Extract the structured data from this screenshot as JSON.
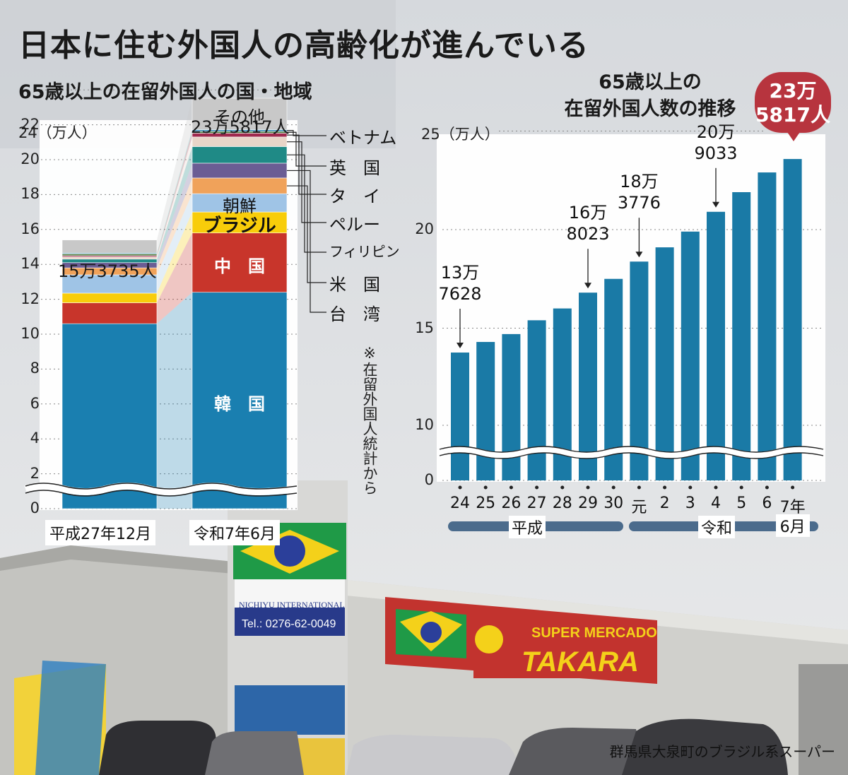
{
  "headline": "日本に住む外国人の高齢化が進んでいる",
  "caption": "群馬県大泉町のブラジル系スーパー",
  "source_note": "※在留外国人統計から",
  "colors": {
    "korea": "#1a7fb0",
    "china": "#c8352b",
    "brazil": "#f8cd0a",
    "chosen": "#9fc4e6",
    "usa": "#f0a25a",
    "taiwan": "#6b5d94",
    "philippines": "#1f8a86",
    "peru": "#e8d5c8",
    "thailand": "#a02a4e",
    "uk": "#4c7a3e",
    "vietnam": "#3d8fb7",
    "other": "#c8c8c8",
    "trend_bar": "#1a7aa6",
    "highlight": "#b7343e"
  },
  "chart_data": [
    {
      "type": "bar",
      "stacked": true,
      "title": "65歳以上の在留外国人の国・地域",
      "y_unit_label": "24（万人）",
      "ylim": [
        0,
        24
      ],
      "y_ticks": [
        "0",
        "2",
        "4",
        "6",
        "8",
        "10",
        "12",
        "14",
        "16",
        "18",
        "20",
        "22"
      ],
      "axis_break": true,
      "categories": [
        "平成27年12月",
        "令和7年6月"
      ],
      "totals": [
        "15万3735人",
        "23万5817人"
      ],
      "series": [
        {
          "name": "韓　国",
          "key": "korea",
          "label_shown": true,
          "values": [
            10.6,
            12.4
          ]
        },
        {
          "name": "中　国",
          "key": "china",
          "label_shown": true,
          "values": [
            1.2,
            3.4
          ]
        },
        {
          "name": "ブラジル",
          "key": "brazil",
          "label_shown": true,
          "values": [
            0.55,
            1.2
          ]
        },
        {
          "name": "朝鮮",
          "key": "chosen",
          "label_shown": true,
          "values": [
            1.05,
            1.05
          ]
        },
        {
          "name": "米　国",
          "key": "usa",
          "label_shown": true,
          "values": [
            0.4,
            0.9
          ]
        },
        {
          "name": "台　湾",
          "key": "taiwan",
          "label_shown": true,
          "values": [
            0.3,
            0.85
          ]
        },
        {
          "name": "フィリピン",
          "key": "philippines",
          "label_shown": true,
          "values": [
            0.2,
            0.95
          ]
        },
        {
          "name": "ペルー",
          "key": "peru",
          "label_shown": true,
          "values": [
            0.13,
            0.55
          ]
        },
        {
          "name": "タ　イ",
          "key": "thailand",
          "label_shown": true,
          "values": [
            0.07,
            0.22
          ]
        },
        {
          "name": "英　国",
          "key": "uk",
          "label_shown": true,
          "values": [
            0.1,
            0.1
          ]
        },
        {
          "name": "ベトナム",
          "key": "vietnam",
          "label_shown": true,
          "values": [
            0.05,
            0.1
          ]
        },
        {
          "name": "その他",
          "key": "other",
          "label_shown": true,
          "values": [
            0.75,
            1.8
          ]
        }
      ]
    },
    {
      "type": "bar",
      "title": "65歳以上の在留外国人数の推移",
      "y_unit_label": "25（万人）",
      "ylim": [
        0,
        25
      ],
      "y_ticks": [
        "0",
        "10",
        "15",
        "20"
      ],
      "axis_break": true,
      "categories": [
        "24",
        "25",
        "26",
        "27",
        "28",
        "29",
        "30",
        "元",
        "2",
        "3",
        "4",
        "5",
        "6",
        "7年"
      ],
      "last_category_sub": "6月",
      "values": [
        13.7628,
        14.3,
        14.7,
        15.4,
        16.0,
        16.8023,
        17.5,
        18.3776,
        19.1,
        19.9,
        20.9033,
        21.9,
        22.9,
        23.5817
      ],
      "annotations": [
        {
          "index": 0,
          "text": "13万\n7628"
        },
        {
          "index": 5,
          "text": "16万\n8023"
        },
        {
          "index": 7,
          "text": "18万\n3776"
        },
        {
          "index": 10,
          "text": "20万\n9033"
        },
        {
          "index": 13,
          "text": "23万\n5817人",
          "highlight": true
        }
      ],
      "eras": [
        {
          "label": "平成"
        },
        {
          "label": "令和"
        }
      ]
    }
  ]
}
